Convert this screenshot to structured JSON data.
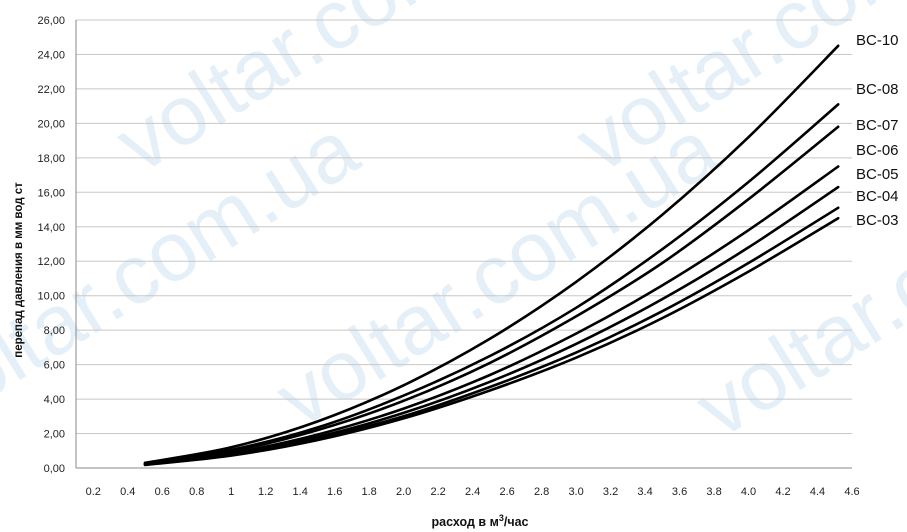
{
  "chart_data": {
    "type": "line",
    "ylabel": "перепад давления в мм вод ст",
    "xlabel_prefix": "расход в м",
    "xlabel_sup": "3",
    "xlabel_suffix": "/час",
    "ylim": [
      0,
      26
    ],
    "xlim": [
      0.1,
      4.6
    ],
    "grid": true,
    "legend": "labels at right end of each curve",
    "y_ticks": [
      "0,00",
      "2,00",
      "4,00",
      "6,00",
      "8,00",
      "10,00",
      "12,00",
      "14,00",
      "16,00",
      "18,00",
      "20,00",
      "22,00",
      "24,00",
      "26,00"
    ],
    "y_tick_values": [
      0,
      2,
      4,
      6,
      8,
      10,
      12,
      14,
      16,
      18,
      20,
      22,
      24,
      26
    ],
    "x_ticks": [
      "0.2",
      "0.4",
      "0.6",
      "0.8",
      "1",
      "1.2",
      "1.4",
      "1.6",
      "1.8",
      "2.0",
      "2.2",
      "2.4",
      "2.6",
      "2.8",
      "3.0",
      "3.2",
      "3.4",
      "3.6",
      "3.8",
      "4.0",
      "4.2",
      "4.4",
      "4.6"
    ],
    "x_tick_values": [
      0.2,
      0.4,
      0.6,
      0.8,
      1.0,
      1.2,
      1.4,
      1.6,
      1.8,
      2.0,
      2.2,
      2.4,
      2.6,
      2.8,
      3.0,
      3.2,
      3.4,
      3.6,
      3.8,
      4.0,
      4.2,
      4.4,
      4.6
    ],
    "x": [
      0.5,
      1.0,
      1.5,
      2.0,
      2.5,
      3.0,
      3.5,
      4.0,
      4.52
    ],
    "series": [
      {
        "name": "BC-10",
        "values": [
          0.3,
          1.2,
          2.7,
          4.8,
          7.5,
          10.8,
          14.7,
          19.2,
          24.5
        ]
      },
      {
        "name": "BC-08",
        "values": [
          0.26,
          1.05,
          2.35,
          4.2,
          6.5,
          9.3,
          12.7,
          16.6,
          21.1
        ]
      },
      {
        "name": "BC-07",
        "values": [
          0.24,
          0.97,
          2.2,
          3.9,
          6.1,
          8.8,
          11.9,
          15.6,
          19.8
        ]
      },
      {
        "name": "BC-06",
        "values": [
          0.22,
          0.86,
          1.94,
          3.45,
          5.4,
          7.8,
          10.6,
          13.8,
          17.5
        ]
      },
      {
        "name": "BC-05",
        "values": [
          0.2,
          0.8,
          1.8,
          3.2,
          5.0,
          7.2,
          9.8,
          12.8,
          16.3
        ]
      },
      {
        "name": "BC-04",
        "values": [
          0.19,
          0.75,
          1.7,
          3.0,
          4.7,
          6.7,
          9.1,
          11.9,
          15.1
        ]
      },
      {
        "name": "BC-03",
        "values": [
          0.18,
          0.72,
          1.62,
          2.88,
          4.5,
          6.4,
          8.7,
          11.4,
          14.5
        ]
      }
    ]
  },
  "watermark": {
    "text": "voltar.com.ua",
    "color": "#cfe2f3"
  }
}
